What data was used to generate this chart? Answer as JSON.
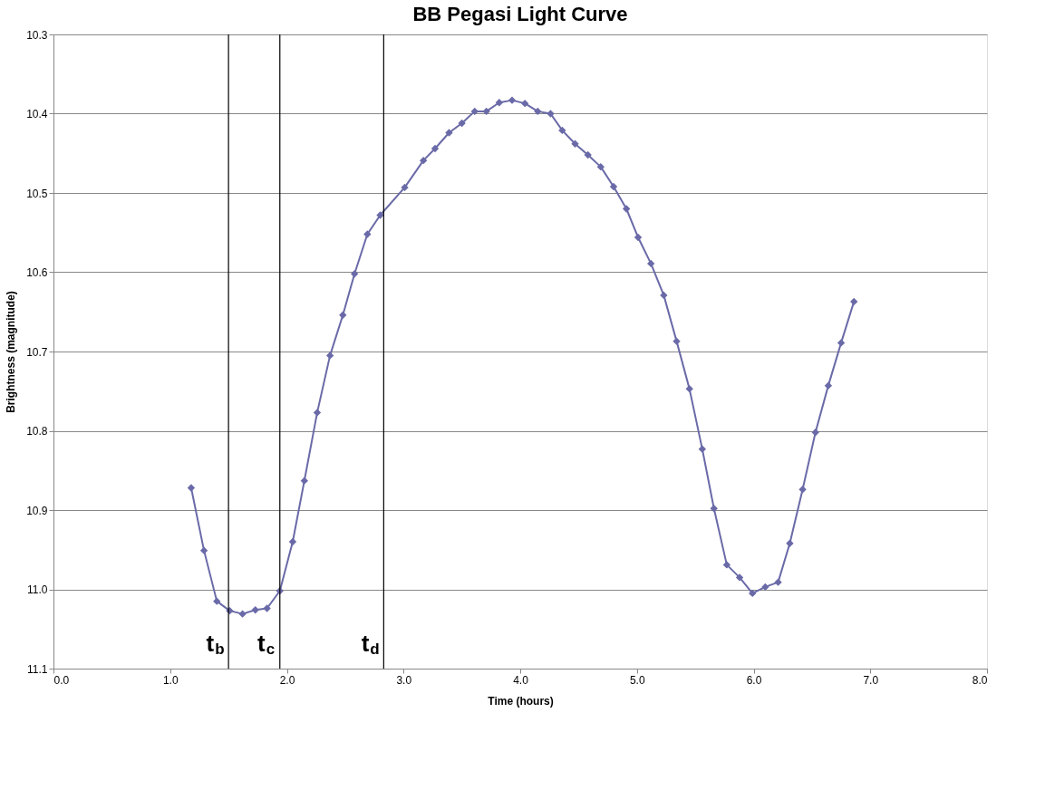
{
  "chart_data": {
    "type": "line",
    "title": "BB Pegasi Light Curve",
    "xlabel": "Time (hours)",
    "ylabel": "Brightness (magnitude)",
    "x": [
      1.18,
      1.29,
      1.4,
      1.51,
      1.62,
      1.73,
      1.83,
      1.94,
      2.05,
      2.15,
      2.26,
      2.37,
      2.48,
      2.58,
      2.69,
      2.8,
      3.01,
      3.17,
      3.27,
      3.39,
      3.5,
      3.61,
      3.71,
      3.82,
      3.93,
      4.04,
      4.15,
      4.26,
      4.36,
      4.47,
      4.58,
      4.69,
      4.8,
      4.91,
      5.01,
      5.12,
      5.23,
      5.34,
      5.45,
      5.56,
      5.66,
      5.77,
      5.88,
      5.99,
      6.1,
      6.21,
      6.31,
      6.42,
      6.53,
      6.64,
      6.75,
      6.86
    ],
    "series": [
      {
        "color": "#6a6aa8",
        "values": [
          10.872,
          10.951,
          11.015,
          11.027,
          11.031,
          11.026,
          11.024,
          11.002,
          10.94,
          10.863,
          10.777,
          10.705,
          10.654,
          10.602,
          10.552,
          10.528,
          10.493,
          10.459,
          10.444,
          10.424,
          10.412,
          10.397,
          10.397,
          10.386,
          10.383,
          10.387,
          10.397,
          10.4,
          10.421,
          10.438,
          10.452,
          10.467,
          10.492,
          10.52,
          10.556,
          10.589,
          10.629,
          10.687,
          10.747,
          10.823,
          10.898,
          10.969,
          10.985,
          11.005,
          10.997,
          10.991,
          10.942,
          10.874,
          10.802,
          10.743,
          10.689,
          10.637
        ]
      }
    ],
    "xlim": [
      0,
      8
    ],
    "xticks": [
      {
        "value": 0,
        "label": "0.0"
      },
      {
        "value": 1,
        "label": "1.0"
      },
      {
        "value": 2,
        "label": "2.0"
      },
      {
        "value": 3,
        "label": "3.0"
      },
      {
        "value": 4,
        "label": "4.0"
      },
      {
        "value": 5,
        "label": "5.0"
      },
      {
        "value": 6,
        "label": "6.0"
      },
      {
        "value": 7,
        "label": "7.0"
      },
      {
        "value": 8,
        "label": "8.0"
      }
    ],
    "ylim": [
      11.1,
      10.3
    ],
    "yticks": [
      10.3,
      10.4,
      10.5,
      10.6,
      10.7,
      10.8,
      10.9,
      {
        "value": 11,
        "label": "11.0"
      },
      11.1
    ],
    "ref_lines": [
      {
        "axis": "x",
        "value": 1.5,
        "label": "t$_{b}$",
        "color": "#000000"
      },
      {
        "axis": "x",
        "value": 1.94,
        "label": "t$_{c}$",
        "color": "#000000"
      },
      {
        "axis": "x",
        "value": 2.83,
        "label": "t$_{d}$",
        "color": "#000000"
      }
    ],
    "grid": "y",
    "marker": "diamond",
    "line_style": "solid"
  }
}
